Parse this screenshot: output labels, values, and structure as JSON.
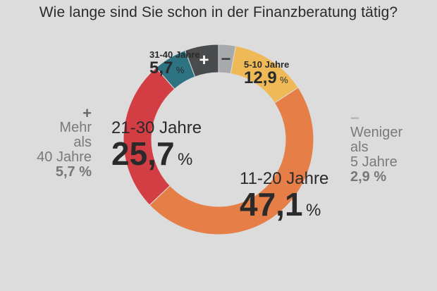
{
  "chart_data": {
    "type": "donut",
    "title": "Wie lange sind Sie schon in der Finanzberatung tätig?",
    "unit": "%",
    "slices": [
      {
        "label": "Weniger als 5 Jahre",
        "value": 2.9,
        "value_text": "2,9",
        "color": "#a8a9ab"
      },
      {
        "label": "5-10 Jahre",
        "value": 12.9,
        "value_text": "12,9",
        "color": "#eeb956"
      },
      {
        "label": "11-20 Jahre",
        "value": 47.1,
        "value_text": "47,1",
        "color": "#e67e48"
      },
      {
        "label": "21-30 Jahre",
        "value": 25.7,
        "value_text": "25,7",
        "color": "#d33e45"
      },
      {
        "label": "31-40 Jahre",
        "value": 5.7,
        "value_text": "5,7",
        "color": "#2d7381"
      },
      {
        "label": "Mehr als 40 Jahre",
        "value": 5.7,
        "value_text": "5,7",
        "color": "#4a4b4d"
      }
    ],
    "inner_symbols": {
      "plus": "+",
      "minus": "−"
    }
  },
  "labels": {
    "less5": {
      "symbol": "−",
      "line1": "Weniger",
      "line2": "als",
      "line3": "5 Jahre",
      "pct": "2,9 %"
    },
    "more40": {
      "symbol": "+",
      "line1": "Mehr",
      "line2": "als",
      "line3": "40 Jahre",
      "pct": "5,7 %"
    },
    "y5_10": {
      "name": "5-10 Jahre",
      "value": "12,9",
      "unit": "%"
    },
    "y11_20": {
      "name": "11-20 Jahre",
      "value": "47,1",
      "unit": "%"
    },
    "y21_30": {
      "name": "21-30 Jahre",
      "value": "25,7",
      "unit": "%"
    },
    "y31_40": {
      "name": "31-40 Jahre",
      "value": "5,7",
      "unit": "%"
    }
  }
}
